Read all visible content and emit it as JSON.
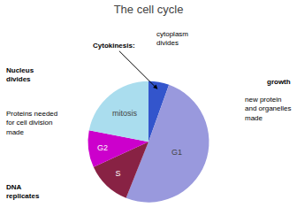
{
  "chart_data": {
    "type": "pie",
    "title": "The cell cycle",
    "categories": [
      null,
      "G1",
      "S",
      "G2",
      "mitosis"
    ],
    "values": [
      5,
      46,
      11,
      9,
      20
    ],
    "colors": [
      "#3355cc",
      "#9999dd",
      "#882244",
      "#cc00cc",
      "#aaddee"
    ],
    "annotations": [
      "Cytokinesis:",
      "cytoplasm\ndivides",
      "Nucleus\ndivides",
      "Proteins needed\nfor cell division\nmade",
      "DNA\nreplicates",
      "growth",
      "new protein\nand organelles\nmade"
    ]
  }
}
